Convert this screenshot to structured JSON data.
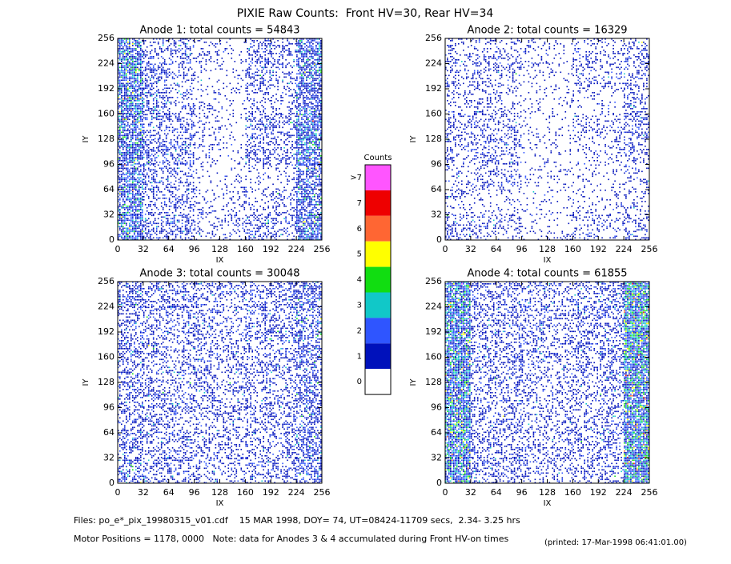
{
  "title": "PIXIE Raw Counts:  Front HV=30, Rear HV=34",
  "chart_data": [
    {
      "type": "heatmap",
      "title": "Anode 1: total counts = 54843",
      "xlabel": "IX",
      "ylabel": "IY",
      "xlim": [
        0,
        256
      ],
      "ylim": [
        0,
        256
      ],
      "xticks": [
        0,
        32,
        64,
        96,
        128,
        160,
        192,
        224,
        256
      ],
      "yticks": [
        0,
        32,
        64,
        96,
        128,
        160,
        192,
        224,
        256
      ],
      "density": [
        [
          1.2,
          0.3,
          0.5,
          0.2,
          0.1,
          0.4,
          0.3,
          1.0
        ],
        [
          1.5,
          0.5,
          0.3,
          0.1,
          0.1,
          0.5,
          0.3,
          1.0
        ],
        [
          1.5,
          0.6,
          0.3,
          0.2,
          0.1,
          0.2,
          0.3,
          1.0
        ],
        [
          1.3,
          0.5,
          0.5,
          0.2,
          0.1,
          0.5,
          0.4,
          1.5
        ],
        [
          1.3,
          0.6,
          0.5,
          0.2,
          0.1,
          0.4,
          0.3,
          1.2
        ],
        [
          1.2,
          0.5,
          0.4,
          0.1,
          0.1,
          0.2,
          0.2,
          1.0
        ],
        [
          1.2,
          0.3,
          0.4,
          0.2,
          0.2,
          0.2,
          0.3,
          0.9
        ],
        [
          1.4,
          0.5,
          0.5,
          0.2,
          0.2,
          0.5,
          0.4,
          1.2
        ]
      ]
    },
    {
      "type": "heatmap",
      "title": "Anode 2: total counts = 16329",
      "xlabel": "IX",
      "ylabel": "IY",
      "xlim": [
        0,
        256
      ],
      "ylim": [
        0,
        256
      ],
      "xticks": [
        0,
        32,
        64,
        96,
        128,
        160,
        192,
        224,
        256
      ],
      "yticks": [
        0,
        32,
        64,
        96,
        128,
        160,
        192,
        224,
        256
      ],
      "density": [
        [
          0.3,
          0.3,
          0.3,
          0.2,
          0.1,
          0.3,
          0.2,
          0.4
        ],
        [
          0.3,
          0.3,
          0.3,
          0.1,
          0.1,
          0.3,
          0.2,
          0.4
        ],
        [
          0.2,
          0.3,
          0.2,
          0.1,
          0.1,
          0.1,
          0.1,
          0.3
        ],
        [
          0.3,
          0.3,
          0.3,
          0.1,
          0.1,
          0.3,
          0.2,
          0.4
        ],
        [
          0.3,
          0.4,
          0.3,
          0.1,
          0.1,
          0.2,
          0.2,
          0.3
        ],
        [
          0.2,
          0.3,
          0.3,
          0.1,
          0.1,
          0.1,
          0.1,
          0.2
        ],
        [
          0.2,
          0.1,
          0.1,
          0.1,
          0.1,
          0.1,
          0.1,
          0.2
        ],
        [
          0.4,
          0.3,
          0.3,
          0.1,
          0.1,
          0.3,
          0.2,
          0.3
        ]
      ]
    },
    {
      "type": "heatmap",
      "title": "Anode 3: total counts = 30048",
      "xlabel": "IX",
      "ylabel": "IY",
      "xlim": [
        0,
        256
      ],
      "ylim": [
        0,
        256
      ],
      "xticks": [
        0,
        32,
        64,
        96,
        128,
        160,
        192,
        224,
        256
      ],
      "yticks": [
        0,
        32,
        64,
        96,
        128,
        160,
        192,
        224,
        256
      ],
      "density": [
        [
          0.6,
          0.4,
          0.4,
          0.4,
          0.3,
          0.4,
          0.5,
          0.7
        ],
        [
          0.5,
          0.4,
          0.4,
          0.4,
          0.3,
          0.4,
          0.4,
          0.6
        ],
        [
          0.5,
          0.4,
          0.4,
          0.4,
          0.3,
          0.4,
          0.4,
          0.6
        ],
        [
          0.5,
          0.4,
          0.4,
          0.4,
          0.3,
          0.4,
          0.4,
          0.6
        ],
        [
          0.5,
          0.4,
          0.4,
          0.4,
          0.3,
          0.4,
          0.4,
          0.6
        ],
        [
          0.5,
          0.4,
          0.4,
          0.3,
          0.3,
          0.4,
          0.4,
          0.6
        ],
        [
          0.5,
          0.4,
          0.4,
          0.3,
          0.3,
          0.3,
          0.4,
          0.6
        ],
        [
          0.6,
          0.4,
          0.4,
          0.4,
          0.3,
          0.4,
          0.4,
          0.7
        ]
      ]
    },
    {
      "type": "heatmap",
      "title": "Anode 4: total counts = 61855",
      "xlabel": "IX",
      "ylabel": "IY",
      "xlim": [
        0,
        256
      ],
      "ylim": [
        0,
        256
      ],
      "xticks": [
        0,
        32,
        64,
        96,
        128,
        160,
        192,
        224,
        256
      ],
      "yticks": [
        0,
        32,
        64,
        96,
        128,
        160,
        192,
        224,
        256
      ],
      "density": [
        [
          1.8,
          0.4,
          0.4,
          0.4,
          0.3,
          0.4,
          0.5,
          2.2
        ],
        [
          1.8,
          0.4,
          0.4,
          0.4,
          0.3,
          0.4,
          0.5,
          2.2
        ],
        [
          1.8,
          0.4,
          0.4,
          0.4,
          0.3,
          0.4,
          0.4,
          2.0
        ],
        [
          1.8,
          0.4,
          0.4,
          0.4,
          0.3,
          0.4,
          0.4,
          2.0
        ],
        [
          1.8,
          0.4,
          0.4,
          0.3,
          0.3,
          0.3,
          0.4,
          2.0
        ],
        [
          1.8,
          0.4,
          0.4,
          0.3,
          0.3,
          0.3,
          0.4,
          2.0
        ],
        [
          1.8,
          0.4,
          0.3,
          0.3,
          0.3,
          0.3,
          0.4,
          2.0
        ],
        [
          1.8,
          0.4,
          0.4,
          0.3,
          0.3,
          0.3,
          0.4,
          2.0
        ]
      ]
    }
  ],
  "colorbar": {
    "title": "Counts",
    "labels": [
      ">7",
      "7",
      "6",
      "5",
      "4",
      "3",
      "2",
      "1",
      "0"
    ],
    "colors": [
      "#ff55ff",
      "#ee0000",
      "#ff6633",
      "#ffff00",
      "#11dd11",
      "#11c8c8",
      "#2f55ff",
      "#0011bb",
      "#ffffff"
    ]
  },
  "footer": [
    "Files: po_e*_pix_19980315_v01.cdf    15 MAR 1998, DOY= 74, UT=08424-11709 secs,  2.34- 3.25 hrs",
    "Motor Positions = 1178, 0000   Note: data for Anodes 3 & 4 accumulated during Front HV-on times",
    "(printed: 17-Mar-1998 06:41:01.00)"
  ]
}
